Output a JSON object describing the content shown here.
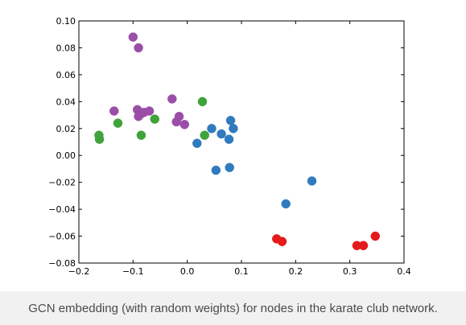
{
  "caption": "GCN embedding (with random weights) for nodes in the karate club network.",
  "colors": {
    "purple": "#9b4ea8",
    "green": "#3fa33a",
    "blue": "#2f7bbd",
    "red": "#e41a1c"
  },
  "chart_data": {
    "type": "scatter",
    "title": "",
    "xlabel": "",
    "ylabel": "",
    "xlim": [
      -0.2,
      0.4
    ],
    "ylim": [
      -0.08,
      0.1
    ],
    "xticks": [
      "−0.2",
      "−0.1",
      "0.0",
      "0.1",
      "0.2",
      "0.3",
      "0.4"
    ],
    "yticks": [
      "−0.08",
      "−0.06",
      "−0.04",
      "−0.02",
      "0.00",
      "0.02",
      "0.04",
      "0.06",
      "0.08",
      "0.10"
    ],
    "grid": false,
    "legend": "none",
    "series": [
      {
        "color": "#9b4ea8",
        "points": [
          [
            -0.1,
            0.088
          ],
          [
            -0.09,
            0.08
          ],
          [
            -0.135,
            0.033
          ],
          [
            -0.092,
            0.034
          ],
          [
            -0.085,
            0.031
          ],
          [
            -0.08,
            0.032
          ],
          [
            -0.09,
            0.029
          ],
          [
            -0.07,
            0.033
          ],
          [
            -0.028,
            0.042
          ],
          [
            -0.015,
            0.029
          ],
          [
            -0.02,
            0.025
          ],
          [
            -0.005,
            0.023
          ]
        ]
      },
      {
        "color": "#3fa33a",
        "points": [
          [
            -0.163,
            0.015
          ],
          [
            -0.162,
            0.012
          ],
          [
            -0.128,
            0.024
          ],
          [
            -0.085,
            0.015
          ],
          [
            -0.06,
            0.027
          ],
          [
            0.028,
            0.04
          ],
          [
            0.032,
            0.015
          ]
        ]
      },
      {
        "color": "#2f7bbd",
        "points": [
          [
            0.045,
            0.02
          ],
          [
            0.063,
            0.016
          ],
          [
            0.08,
            0.026
          ],
          [
            0.085,
            0.02
          ],
          [
            0.077,
            0.012
          ],
          [
            0.018,
            0.009
          ],
          [
            0.053,
            -0.011
          ],
          [
            0.078,
            -0.009
          ],
          [
            0.182,
            -0.036
          ],
          [
            0.23,
            -0.019
          ]
        ]
      },
      {
        "color": "#e41a1c",
        "points": [
          [
            0.165,
            -0.062
          ],
          [
            0.175,
            -0.064
          ],
          [
            0.313,
            -0.067
          ],
          [
            0.325,
            -0.067
          ],
          [
            0.347,
            -0.06
          ]
        ]
      }
    ]
  }
}
